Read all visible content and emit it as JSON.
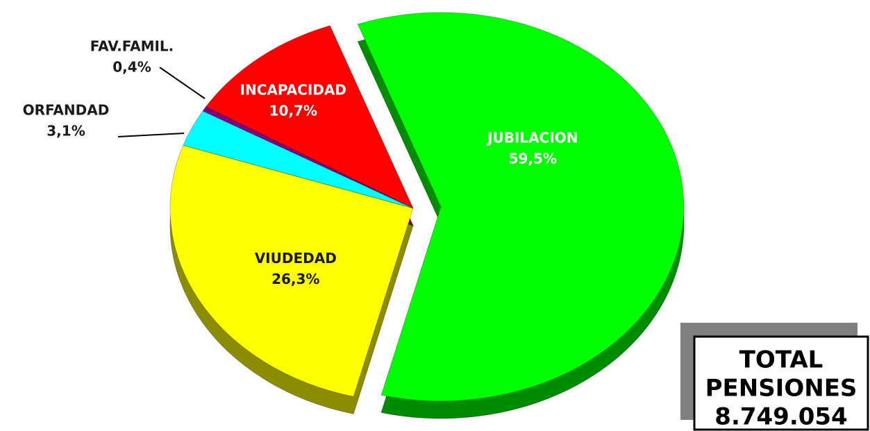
{
  "chart_data": {
    "type": "pie",
    "categories": [
      "JUBILACION",
      "VIUDEDAD",
      "ORFANDAD",
      "FAV.FAMIL.",
      "INCAPACIDAD"
    ],
    "values": [
      59.5,
      26.3,
      3.1,
      0.4,
      10.7
    ],
    "value_labels": [
      "59,5%",
      "26,3%",
      "3,1%",
      "0,4%",
      "10,7%"
    ],
    "colors": [
      "#00ff00",
      "#ffff00",
      "#00ffff",
      "#800080",
      "#ff0000"
    ],
    "exploded": [
      "JUBILACION"
    ],
    "annotation": [
      "TOTAL",
      "PENSIONES",
      "8.749.054"
    ]
  }
}
